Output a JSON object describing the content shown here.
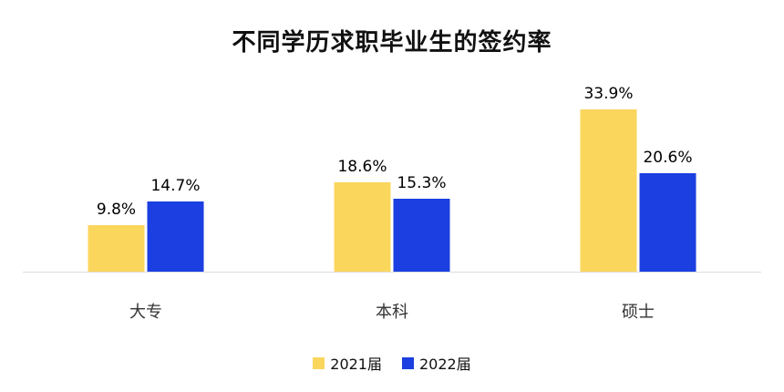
{
  "title": "不同学历求职毕业生的签约率",
  "chart_data": {
    "type": "bar",
    "title": "不同学历求职毕业生的签约率",
    "categories": [
      "大专",
      "本科",
      "硕士"
    ],
    "series": [
      {
        "name": "2021届",
        "color": "#FBD65D",
        "values": [
          9.8,
          18.6,
          33.9
        ],
        "labels": [
          "9.8%",
          "18.6%",
          "33.9%"
        ]
      },
      {
        "name": "2022届",
        "color": "#1B3FE0",
        "values": [
          14.7,
          15.3,
          20.6
        ],
        "labels": [
          "14.7%",
          "15.3%",
          "20.6%"
        ]
      }
    ],
    "xlabel": "",
    "ylabel": "",
    "ylim": [
      0,
      45
    ],
    "grid": false,
    "legend_position": "bottom"
  }
}
